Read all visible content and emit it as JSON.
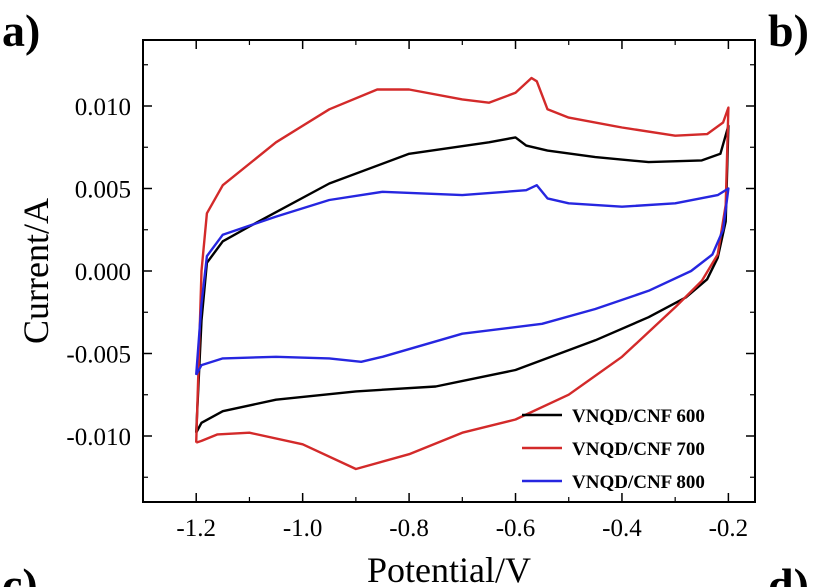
{
  "panel_labels": [
    "a)",
    "b)",
    "c)",
    "d)"
  ],
  "chart_data": {
    "type": "line",
    "title": "",
    "xlabel": "Potential/V",
    "ylabel": "Current/A",
    "xlim": [
      -1.3,
      -0.15
    ],
    "ylim": [
      -0.014,
      0.014
    ],
    "x_ticks": [
      -1.2,
      -1.0,
      -0.8,
      -0.6,
      -0.4,
      -0.2
    ],
    "x_tick_labels": [
      "-1.2",
      "-1.0",
      "-0.8",
      "-0.6",
      "-0.4",
      "-0.2"
    ],
    "y_ticks": [
      0.01,
      0.005,
      0.0,
      -0.005,
      -0.01
    ],
    "y_tick_labels": [
      "0.010",
      "0.005",
      "0.000",
      "-0.005",
      "-0.010"
    ],
    "grid": false,
    "legend_position": "bottom-right",
    "series": [
      {
        "name": "VNQD/CNF 600",
        "color": "#000000",
        "points": [
          [
            -1.2,
            -0.0098
          ],
          [
            -1.19,
            -0.0092
          ],
          [
            -1.15,
            -0.0085
          ],
          [
            -1.05,
            -0.0078
          ],
          [
            -0.9,
            -0.0073
          ],
          [
            -0.75,
            -0.007
          ],
          [
            -0.6,
            -0.006
          ],
          [
            -0.45,
            -0.0042
          ],
          [
            -0.35,
            -0.0028
          ],
          [
            -0.28,
            -0.0016
          ],
          [
            -0.24,
            -0.0005
          ],
          [
            -0.22,
            0.0008
          ],
          [
            -0.205,
            0.003
          ],
          [
            -0.2,
            0.0088
          ],
          [
            -0.215,
            0.0071
          ],
          [
            -0.25,
            0.0067
          ],
          [
            -0.35,
            0.0066
          ],
          [
            -0.45,
            0.0069
          ],
          [
            -0.54,
            0.0073
          ],
          [
            -0.58,
            0.0076
          ],
          [
            -0.6,
            0.0081
          ],
          [
            -0.65,
            0.0078
          ],
          [
            -0.8,
            0.0071
          ],
          [
            -0.95,
            0.0053
          ],
          [
            -1.1,
            0.0027
          ],
          [
            -1.15,
            0.0018
          ],
          [
            -1.18,
            0.0005
          ],
          [
            -1.19,
            -0.003
          ],
          [
            -1.2,
            -0.0098
          ]
        ]
      },
      {
        "name": "VNQD/CNF 700",
        "color": "#d32a2a",
        "points": [
          [
            -1.2,
            -0.0104
          ],
          [
            -1.19,
            -0.0103
          ],
          [
            -1.16,
            -0.0099
          ],
          [
            -1.1,
            -0.0098
          ],
          [
            -1.0,
            -0.0105
          ],
          [
            -0.9,
            -0.012
          ],
          [
            -0.8,
            -0.0111
          ],
          [
            -0.7,
            -0.0098
          ],
          [
            -0.6,
            -0.009
          ],
          [
            -0.5,
            -0.0075
          ],
          [
            -0.4,
            -0.0052
          ],
          [
            -0.3,
            -0.0022
          ],
          [
            -0.25,
            -0.0006
          ],
          [
            -0.22,
            0.001
          ],
          [
            -0.205,
            0.004
          ],
          [
            -0.2,
            0.0099
          ],
          [
            -0.21,
            0.009
          ],
          [
            -0.24,
            0.0083
          ],
          [
            -0.3,
            0.0082
          ],
          [
            -0.4,
            0.0087
          ],
          [
            -0.5,
            0.0093
          ],
          [
            -0.54,
            0.0098
          ],
          [
            -0.56,
            0.0115
          ],
          [
            -0.57,
            0.0117
          ],
          [
            -0.6,
            0.0108
          ],
          [
            -0.65,
            0.0102
          ],
          [
            -0.7,
            0.0104
          ],
          [
            -0.8,
            0.011
          ],
          [
            -0.86,
            0.011
          ],
          [
            -0.95,
            0.0098
          ],
          [
            -1.05,
            0.0078
          ],
          [
            -1.15,
            0.0052
          ],
          [
            -1.18,
            0.0035
          ],
          [
            -1.19,
            0.0
          ],
          [
            -1.2,
            -0.0104
          ]
        ]
      },
      {
        "name": "VNQD/CNF 800",
        "color": "#2626e0",
        "points": [
          [
            -1.2,
            -0.0063
          ],
          [
            -1.19,
            -0.0057
          ],
          [
            -1.15,
            -0.0053
          ],
          [
            -1.05,
            -0.0052
          ],
          [
            -0.95,
            -0.0053
          ],
          [
            -0.89,
            -0.0055
          ],
          [
            -0.85,
            -0.0052
          ],
          [
            -0.7,
            -0.0038
          ],
          [
            -0.55,
            -0.0032
          ],
          [
            -0.45,
            -0.0023
          ],
          [
            -0.35,
            -0.0012
          ],
          [
            -0.27,
            0.0
          ],
          [
            -0.23,
            0.001
          ],
          [
            -0.21,
            0.0025
          ],
          [
            -0.2,
            0.005
          ],
          [
            -0.22,
            0.0046
          ],
          [
            -0.3,
            0.0041
          ],
          [
            -0.4,
            0.0039
          ],
          [
            -0.5,
            0.0041
          ],
          [
            -0.54,
            0.0044
          ],
          [
            -0.56,
            0.0052
          ],
          [
            -0.58,
            0.0049
          ],
          [
            -0.7,
            0.0046
          ],
          [
            -0.85,
            0.0048
          ],
          [
            -0.95,
            0.0043
          ],
          [
            -1.05,
            0.0033
          ],
          [
            -1.15,
            0.0022
          ],
          [
            -1.18,
            0.0009
          ],
          [
            -1.19,
            -0.002
          ],
          [
            -1.2,
            -0.0063
          ]
        ]
      }
    ]
  }
}
